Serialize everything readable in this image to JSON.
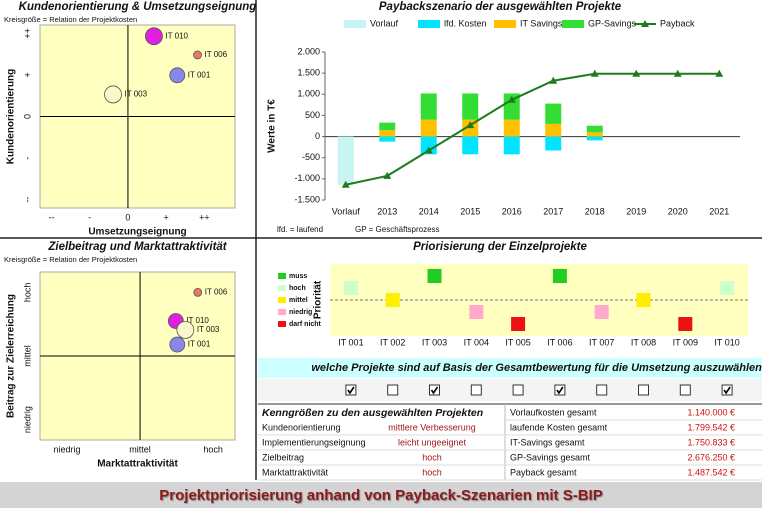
{
  "chart_data": [
    {
      "type": "bubble",
      "title": "Kundenorientierung & Umsetzungseignung",
      "subtitle": "Kreisgröße = Relation der Projektkosten",
      "x_label": "Umsetzungseignung",
      "y_label": "Kundenorientierung",
      "xlim": [
        -2.3,
        2.8
      ],
      "ylim": [
        -2.2,
        2.2
      ],
      "xticks": [
        {
          "value": -2,
          "label": "--"
        },
        {
          "value": -1,
          "label": "-"
        },
        0,
        {
          "value": 1,
          "label": "+"
        },
        {
          "value": 2,
          "label": "++"
        }
      ],
      "yticks": [
        {
          "value": -2,
          "label": "--"
        },
        {
          "value": -1,
          "label": "-"
        },
        0,
        {
          "value": 1,
          "label": "+"
        },
        {
          "value": 2,
          "label": "++"
        }
      ],
      "labels": [
        "IT 010",
        "IT 006",
        "IT 001",
        "IT 003"
      ],
      "x": [
        0.68,
        1.82,
        1.29,
        -0.39
      ],
      "values": [
        1.93,
        1.48,
        0.99,
        0.53
      ],
      "sizes": [
        8.5,
        4,
        7.5,
        8.5
      ],
      "colors": [
        "#e020e0",
        "#e87860",
        "#8888e8",
        "#f8f8c8"
      ]
    },
    {
      "type": "bubble",
      "title": "Zielbeitrag und Marktattraktivität",
      "subtitle": "Kreisgröße = Relation der Projektkosten",
      "x_label": "Marktattraktivität",
      "y_label": "Beitrag zur Zielerreichung",
      "xlim": [
        0.63,
        3.3
      ],
      "ylim": [
        0.68,
        3.32
      ],
      "xticks": [
        {
          "value": 1,
          "label": "niedrig"
        },
        {
          "value": 2,
          "label": "mittel"
        },
        {
          "value": 3,
          "label": "hoch"
        }
      ],
      "yticks": [
        {
          "value": 1,
          "label": "niedrig"
        },
        {
          "value": 2,
          "label": "mittel"
        },
        {
          "value": 3,
          "label": "hoch"
        }
      ],
      "labels": [
        "IT 006",
        "IT 010",
        "IT 003",
        "IT 001"
      ],
      "x": [
        2.79,
        2.49,
        2.62,
        2.51
      ],
      "values": [
        3.0,
        2.55,
        2.41,
        2.18
      ],
      "sizes": [
        4,
        7.5,
        8.5,
        7.5
      ],
      "colors": [
        "#e87860",
        "#e020e0",
        "#f8f8c8",
        "#8888e8"
      ]
    },
    {
      "type": "bar",
      "stacked": true,
      "title": "Paybackszenario der ausgewählten Projekte",
      "y_label": "Werte in T€",
      "categories": [
        "Vorlauf",
        "2013",
        "2014",
        "2015",
        "2016",
        "2017",
        "2018",
        "2019",
        "2020",
        "2021"
      ],
      "ylim": [
        -1500,
        2000
      ],
      "yticks": [
        {
          "value": 2000,
          "label": "2.000"
        },
        {
          "value": 1500,
          "label": "1.500"
        },
        {
          "value": 1000,
          "label": "1.000"
        },
        500,
        0,
        -500,
        {
          "value": -1000,
          "label": "-1.000"
        },
        {
          "value": -1500,
          "label": "-1.500"
        }
      ],
      "series": [
        {
          "name": "Vorlauf",
          "color": "#c8f4f4",
          "values": [
            -1140,
            null,
            null,
            null,
            null,
            null,
            null,
            null,
            null,
            null
          ]
        },
        {
          "name": "lfd. Kosten",
          "color": "#00e5ff",
          "values": [
            null,
            -120,
            -420,
            -420,
            -420,
            -330,
            -90,
            null,
            null,
            null
          ]
        },
        {
          "name": "IT Savings",
          "color": "#ffc000",
          "values": [
            null,
            150,
            400,
            400,
            400,
            300,
            100,
            null,
            null,
            null
          ]
        },
        {
          "name": "GP-Savings",
          "color": "#33dd33",
          "values": [
            null,
            180,
            620,
            620,
            620,
            480,
            156,
            null,
            null,
            null
          ]
        },
        {
          "name": "Payback",
          "type": "line",
          "color": "#1e7a1e",
          "values": [
            -1140,
            -930,
            -330,
            270,
            870,
            1320,
            1486,
            1486,
            1486,
            1486
          ]
        }
      ],
      "annotations": [
        "lfd. = laufend",
        "GP = Geschäftsprozess"
      ]
    },
    {
      "type": "priority",
      "title": "Priorisierung der Einzelprojekte",
      "y_label": "Priorität",
      "categories": [
        "IT 001",
        "IT 002",
        "IT 003",
        "IT 004",
        "IT 005",
        "IT 006",
        "IT 007",
        "IT 008",
        "IT 009",
        "IT 010"
      ],
      "values": [
        4,
        3,
        5,
        2,
        1,
        5,
        2,
        3,
        1,
        4
      ],
      "ylim": [
        0.5,
        5.5
      ],
      "yticks": [
        {
          "value": 5,
          "label": "muss"
        },
        {
          "value": 4,
          "label": "hoch"
        },
        {
          "value": 3,
          "label": "mittel"
        },
        {
          "value": 2,
          "label": "niedrig"
        },
        {
          "value": 1,
          "label": "darf nicht"
        }
      ],
      "level_colors": [
        "#22cc22",
        "#ccffcc",
        "#ffee00",
        "#ffaacc",
        "#ee1111"
      ]
    }
  ],
  "selection": {
    "question": "welche Projekte sind auf Basis der Gesamtbewertung für die Umsetzung auszuwählen?",
    "selected": [
      true,
      false,
      true,
      false,
      false,
      true,
      false,
      false,
      false,
      true
    ]
  },
  "kpi": {
    "title": "Kenngrößen zu den ausgewählten Projekten",
    "rows": [
      [
        "Kundenorientierung",
        "mittlere Verbesserung"
      ],
      [
        "Implementierungseignung",
        "leicht ungeeignet"
      ],
      [
        "Zielbeitrag",
        "hoch"
      ],
      [
        "Marktattraktivität",
        "hoch"
      ]
    ],
    "totals": [
      [
        "Vorlaufkosten gesamt",
        "1.140.000 €"
      ],
      [
        "laufende Kosten gesamt",
        "1.799.542 €"
      ],
      [
        "IT-Savings gesamt",
        "1.750.833 €"
      ],
      [
        "GP-Savings gesamt",
        "2.676.250 €"
      ],
      [
        "Payback gesamt",
        "1.487.542 €"
      ]
    ]
  },
  "footer": "Projektpriorisierung anhand von Payback-Szenarien mit S-BIP"
}
